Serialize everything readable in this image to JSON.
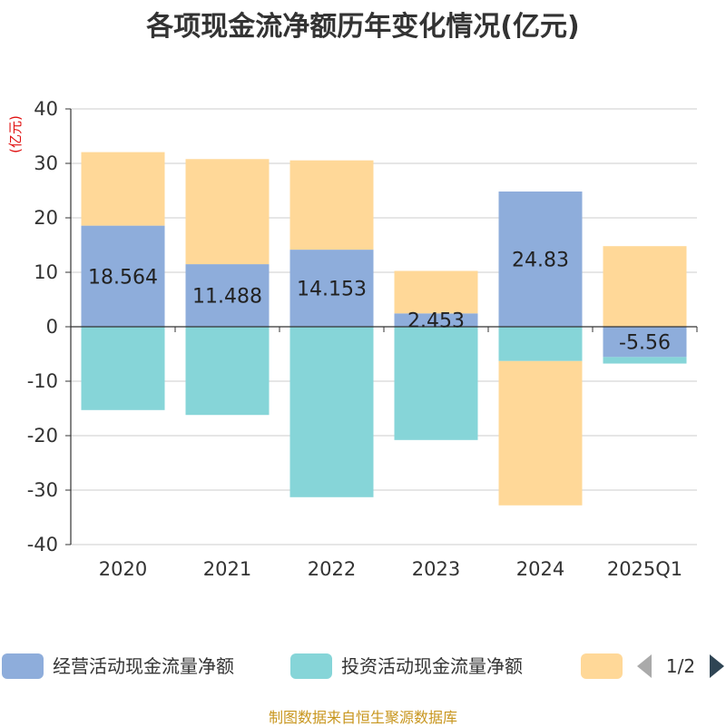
{
  "title": "各项现金流净额历年变化情况(亿元)",
  "source": "制图数据来自恒生聚源数据库",
  "chart_data": {
    "type": "bar",
    "stacked": true,
    "unit_label": "(亿元)",
    "categories": [
      "2020",
      "2021",
      "2022",
      "2023",
      "2024",
      "2025Q1"
    ],
    "ylim": [
      -40,
      40
    ],
    "yticks": [
      40,
      30,
      20,
      10,
      0,
      -10,
      -20,
      -30,
      -40
    ],
    "grid": true,
    "legend_position": "bottom",
    "series": [
      {
        "name": "经营活动现金流量净额",
        "color": "#8eaddb",
        "values": [
          18.564,
          11.488,
          14.153,
          2.453,
          24.83,
          -5.56
        ],
        "labels": [
          "18.564",
          "11.488",
          "14.153",
          "2.453",
          "24.83",
          "-5.56"
        ]
      },
      {
        "name": "投资活动现金流量净额",
        "color": "#86d5d8",
        "values": [
          -15.3,
          -16.2,
          -31.3,
          -20.8,
          -6.3,
          -1.2
        ]
      },
      {
        "name": "",
        "color": "#ffd898",
        "values": [
          13.5,
          19.3,
          16.4,
          7.8,
          -26.5,
          14.8
        ]
      }
    ],
    "legend_page": "1/2"
  }
}
